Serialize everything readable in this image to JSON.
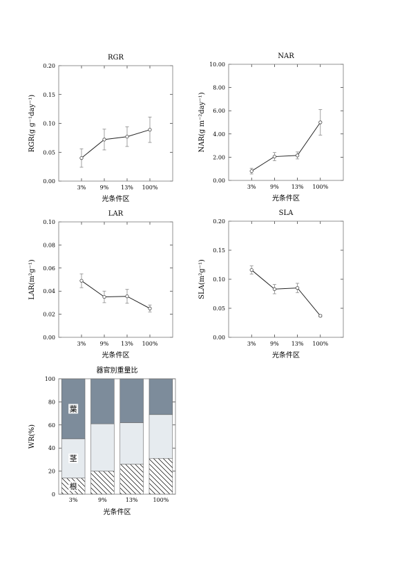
{
  "chart_data": [
    {
      "type": "line",
      "title": "RGR",
      "ylabel": "RGR(g g⁻¹day⁻¹)",
      "xlabel": "光条件区",
      "categories": [
        "3%",
        "9%",
        "13%",
        "100%"
      ],
      "values": [
        0.04,
        0.072,
        0.077,
        0.089
      ],
      "errors": [
        0.016,
        0.018,
        0.017,
        0.022
      ],
      "ylim": [
        0,
        0.2
      ],
      "yticks": [
        "0.00",
        "0.05",
        "0.10",
        "0.15",
        "0.20"
      ]
    },
    {
      "type": "line",
      "title": "NAR",
      "ylabel": "NAR(g m⁻²day⁻¹)",
      "xlabel": "光条件区",
      "categories": [
        "3%",
        "9%",
        "13%",
        "100%"
      ],
      "values": [
        0.8,
        2.05,
        2.15,
        5.0
      ],
      "errors": [
        0.25,
        0.35,
        0.3,
        1.1
      ],
      "ylim": [
        0,
        10
      ],
      "yticks": [
        "0.00",
        "2.00",
        "4.00",
        "6.00",
        "8.00",
        "10.00"
      ]
    },
    {
      "type": "line",
      "title": "LAR",
      "ylabel": "LAR(m²g⁻¹)",
      "xlabel": "光条件区",
      "categories": [
        "3%",
        "9%",
        "13%",
        "100%"
      ],
      "values": [
        0.049,
        0.035,
        0.0355,
        0.025
      ],
      "errors": [
        0.006,
        0.005,
        0.006,
        0.003
      ],
      "ylim": [
        0,
        0.1
      ],
      "yticks": [
        "0.00",
        "0.02",
        "0.04",
        "0.06",
        "0.08",
        "0.10"
      ]
    },
    {
      "type": "line",
      "title": "SLA",
      "ylabel": "SLA(m²g⁻¹)",
      "xlabel": "光条件区",
      "categories": [
        "3%",
        "9%",
        "13%",
        "100%"
      ],
      "values": [
        0.116,
        0.083,
        0.085,
        0.037
      ],
      "errors": [
        0.007,
        0.008,
        0.008,
        0.002
      ],
      "ylim": [
        0,
        0.2
      ],
      "yticks": [
        "0.00",
        "0.05",
        "0.10",
        "0.15",
        "0.20"
      ]
    },
    {
      "type": "bar",
      "stacked": true,
      "title": "器官別重量比",
      "ylabel": "WR(%)",
      "xlabel": "光条件区",
      "categories": [
        "3%",
        "9%",
        "13%",
        "100%"
      ],
      "series": [
        {
          "name": "根",
          "values": [
            14,
            20,
            26,
            31
          ],
          "fill": "hatch"
        },
        {
          "name": "茎",
          "values": [
            34,
            41,
            36,
            38
          ],
          "fill": "#e6ebef"
        },
        {
          "name": "葉",
          "values": [
            52,
            39,
            38,
            31
          ],
          "fill": "#7d8c9b"
        }
      ],
      "ylim": [
        0,
        100
      ],
      "yticks": [
        "0",
        "20",
        "40",
        "60",
        "80",
        "100"
      ]
    }
  ]
}
